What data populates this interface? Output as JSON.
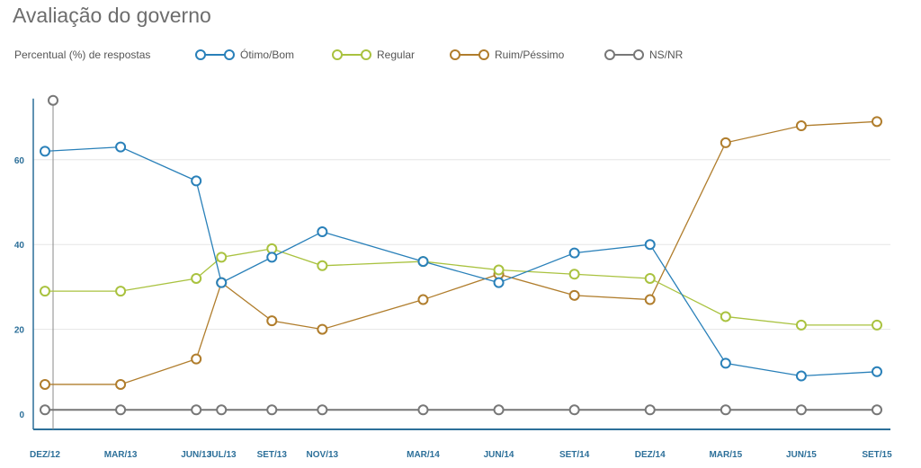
{
  "title": "Avaliação do governo",
  "colors": {
    "otimo_bom": "#2980b9",
    "regular": "#a9c23f",
    "ruim_pessimo": "#b07d2c",
    "ns_nr": "#777777",
    "axis": "#2c6f99",
    "grid": "#e6e6e6"
  },
  "chart_data": {
    "type": "line",
    "title": "Avaliação do governo",
    "ylabel": "Percentual (%) de respostas",
    "xlabel": "",
    "categories": [
      "DEZ/12",
      "MAR/13",
      "JUN/13",
      "JUL/13",
      "SET/13",
      "NOV/13",
      "MAR/14",
      "JUN/14",
      "SET/14",
      "DEZ/14",
      "MAR/15",
      "JUN/15",
      "SET/15"
    ],
    "x_labels_shown": [
      "DEZ/12",
      "MAR/13",
      "JUN/13",
      "JUL/13",
      "SET/13",
      "NOV/13",
      "MAR/14",
      "JUN/14",
      "SET/14",
      "DEZ/14",
      "MAR/15",
      "JUN/15",
      "SET/15"
    ],
    "month_index": [
      0,
      3,
      6,
      7,
      9,
      11,
      15,
      18,
      21,
      24,
      27,
      30,
      33
    ],
    "yticks": [
      0,
      20,
      40,
      60
    ],
    "ylim": [
      0,
      74
    ],
    "grid": true,
    "legend_position": "top",
    "series": [
      {
        "name": "Ótimo/Bom",
        "color_key": "otimo_bom",
        "values": [
          62,
          63,
          55,
          31,
          37,
          43,
          36,
          31,
          38,
          40,
          12,
          9,
          10
        ]
      },
      {
        "name": "Regular",
        "color_key": "regular",
        "values": [
          29,
          29,
          32,
          37,
          39,
          35,
          36,
          34,
          33,
          32,
          23,
          21,
          21
        ]
      },
      {
        "name": "Ruim/Péssimo",
        "color_key": "ruim_pessimo",
        "values": [
          7,
          7,
          13,
          31,
          22,
          20,
          27,
          33,
          28,
          27,
          64,
          68,
          69
        ]
      },
      {
        "name": "NS/NR",
        "color_key": "ns_nr",
        "values": [
          1,
          1,
          1,
          1,
          1,
          1,
          1,
          1,
          1,
          1,
          1,
          1,
          1
        ]
      }
    ],
    "highlight": {
      "category": "DEZ/12",
      "value": 74
    }
  }
}
